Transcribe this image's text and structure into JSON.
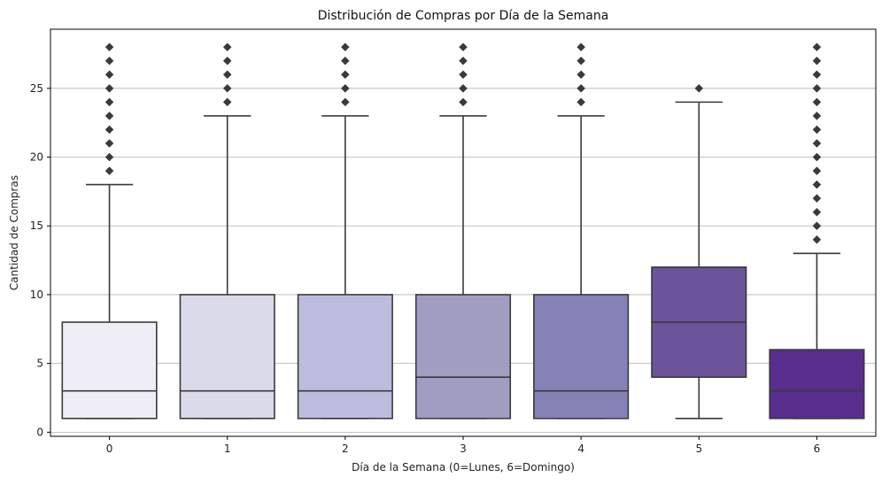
{
  "chart_data": {
    "type": "box",
    "title": "Distribución de Compras por Día de la Semana",
    "xlabel": "Día de la Semana (0=Lunes, 6=Domingo)",
    "ylabel": "Cantidad de Compras",
    "ylim": [
      -0.3,
      29.3
    ],
    "yticks": [
      0,
      5,
      10,
      15,
      20,
      25
    ],
    "grid": "y",
    "categories": [
      "0",
      "1",
      "2",
      "3",
      "4",
      "5",
      "6"
    ],
    "boxes": [
      {
        "category": "0",
        "whisker_low": 1,
        "q1": 1,
        "median": 3,
        "q3": 8,
        "whisker_high": 18,
        "outliers": [
          19,
          20,
          21,
          22,
          23,
          24,
          25,
          26,
          27,
          28
        ],
        "color": "#efedf5"
      },
      {
        "category": "1",
        "whisker_low": 1,
        "q1": 1,
        "median": 3,
        "q3": 10,
        "whisker_high": 23,
        "outliers": [
          24,
          25,
          26,
          27,
          28
        ],
        "color": "#dadaeb"
      },
      {
        "category": "2",
        "whisker_low": 1,
        "q1": 1,
        "median": 3,
        "q3": 10,
        "whisker_high": 23,
        "outliers": [
          24,
          25,
          26,
          27,
          28
        ],
        "color": "#bcbddc"
      },
      {
        "category": "3",
        "whisker_low": 1,
        "q1": 1,
        "median": 4,
        "q3": 10,
        "whisker_high": 23,
        "outliers": [
          24,
          25,
          26,
          27,
          28
        ],
        "color": "#a19dc3"
      },
      {
        "category": "4",
        "whisker_low": 1,
        "q1": 1,
        "median": 3,
        "q3": 10,
        "whisker_high": 23,
        "outliers": [
          24,
          25,
          26,
          27,
          28
        ],
        "color": "#8582b5"
      },
      {
        "category": "5",
        "whisker_low": 1,
        "q1": 4,
        "median": 8,
        "q3": 12,
        "whisker_high": 24,
        "outliers": [
          25
        ],
        "color": "#6b5499"
      },
      {
        "category": "6",
        "whisker_low": 1,
        "q1": 1,
        "median": 3,
        "q3": 6,
        "whisker_high": 13,
        "outliers": [
          14,
          15,
          16,
          17,
          18,
          19,
          20,
          21,
          22,
          23,
          24,
          25,
          26,
          27,
          28
        ],
        "color": "#582d8c"
      }
    ]
  }
}
